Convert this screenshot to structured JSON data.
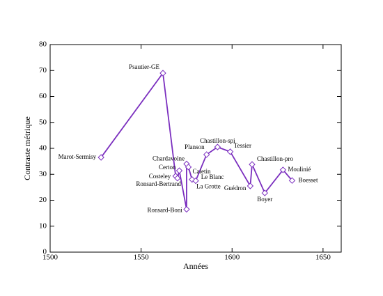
{
  "chart_data": {
    "type": "line",
    "xlabel": "Années",
    "ylabel": "Contraste métrique",
    "xlim": [
      1500,
      1660
    ],
    "ylim": [
      0,
      80
    ],
    "xticks": [
      1500,
      1550,
      1600,
      1650
    ],
    "yticks": [
      0,
      10,
      20,
      30,
      40,
      50,
      60,
      70,
      80
    ],
    "series": [
      {
        "color": "#7b2fbf",
        "labels": [
          "Marot-Sermisy",
          "Psautier-GE",
          "Costeley",
          "Ronsard-Bertrand",
          "Certon",
          "Ronsard-Boni",
          "Chardavoine",
          "Caietin",
          "Le Blanc",
          "La Grotte",
          "Planson",
          "Chastillon-spi",
          "Tessier",
          "Guédron",
          "Chastillon-pro",
          "Boyer",
          "Moulinié",
          "Boesset"
        ],
        "x": [
          1528,
          1562,
          1569,
          1570,
          1571,
          1575,
          1575,
          1576,
          1578,
          1580,
          1586,
          1592,
          1599,
          1610,
          1611,
          1618,
          1628,
          1633
        ],
        "values": [
          36.5,
          69,
          29.3,
          28.5,
          31.4,
          16.5,
          34,
          32.8,
          28,
          27.5,
          37.6,
          40.5,
          38.7,
          25.5,
          33.8,
          22.8,
          31.7,
          27.6
        ]
      }
    ]
  }
}
